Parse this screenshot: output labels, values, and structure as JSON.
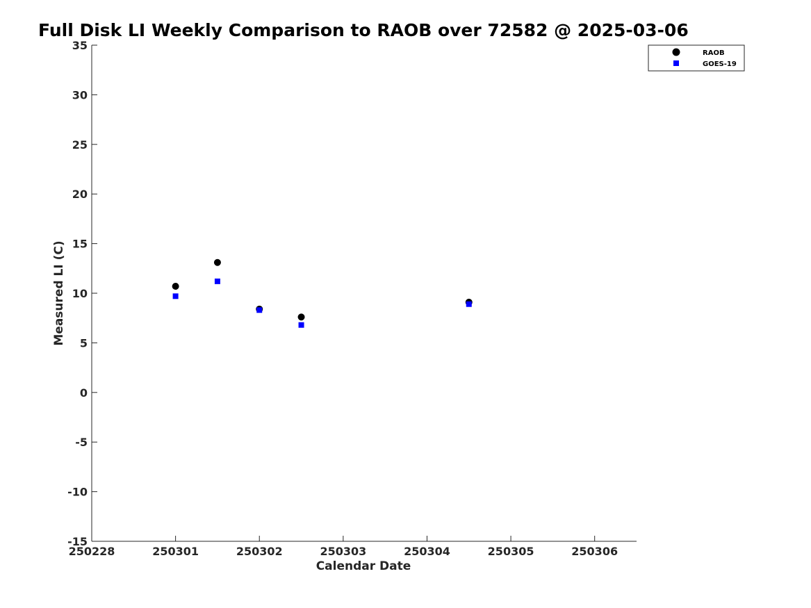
{
  "chart_data": {
    "type": "scatter",
    "title": "Full Disk LI Weekly Comparison to RAOB over 72582 @ 2025-03-06",
    "xlabel": "Calendar Date",
    "ylabel": "Measured LI (C)",
    "xlim": [
      0,
      6.5
    ],
    "ylim": [
      -15,
      35
    ],
    "xticks": [
      0,
      1,
      2,
      3,
      4,
      5,
      6
    ],
    "xtick_labels": [
      "250228",
      "250301",
      "250302",
      "250303",
      "250304",
      "250305",
      "250306"
    ],
    "yticks": [
      -15,
      -10,
      -5,
      0,
      5,
      10,
      15,
      20,
      25,
      30,
      35
    ],
    "ytick_labels": [
      "-15",
      "-10",
      "-5",
      "0",
      "5",
      "10",
      "15",
      "20",
      "25",
      "30",
      "35"
    ],
    "grid": false,
    "legend_position": "top-right",
    "series": [
      {
        "name": "RAOB",
        "marker": "circle",
        "color": "#000000",
        "x": [
          1.0,
          1.5,
          2.0,
          2.5,
          4.5
        ],
        "y": [
          10.7,
          13.1,
          8.4,
          7.6,
          9.1
        ]
      },
      {
        "name": "GOES-19",
        "marker": "square",
        "color": "#0000ff",
        "x": [
          1.0,
          1.5,
          2.0,
          2.5,
          4.5
        ],
        "y": [
          9.7,
          11.2,
          8.3,
          6.8,
          8.9
        ]
      }
    ]
  }
}
